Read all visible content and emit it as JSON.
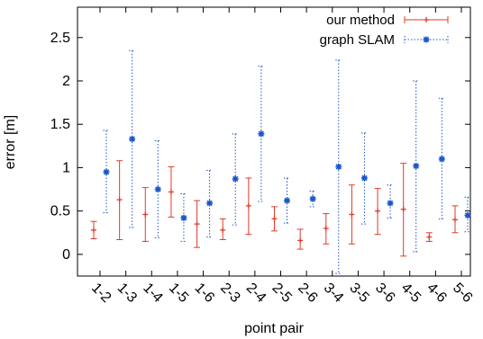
{
  "chart_data": {
    "type": "errorbar",
    "xlabel": "point pair",
    "ylabel": "error [m]",
    "categories": [
      "1-2",
      "1-3",
      "1-4",
      "1-5",
      "1-6",
      "2-3",
      "2-4",
      "2-5",
      "2-6",
      "3-4",
      "3-5",
      "3-6",
      "4-5",
      "4-6",
      "5-6"
    ],
    "ylim": [
      -0.25,
      2.85
    ],
    "yticks": [
      0,
      0.5,
      1,
      1.5,
      2,
      2.5
    ],
    "ytick_labels": [
      "0",
      "0.5",
      "1",
      "1.5",
      "2",
      "2.5"
    ],
    "legend_position": "top-right",
    "series": [
      {
        "name": "our method",
        "color": "#e03b2b",
        "line_style": "solid",
        "marker": "plus",
        "values": [
          0.28,
          0.63,
          0.46,
          0.72,
          0.35,
          0.28,
          0.56,
          0.41,
          0.16,
          0.3,
          0.46,
          0.5,
          0.52,
          0.2,
          0.4
        ],
        "low": [
          0.18,
          0.17,
          0.15,
          0.43,
          0.08,
          0.17,
          0.23,
          0.27,
          0.06,
          0.12,
          0.12,
          0.23,
          -0.02,
          0.15,
          0.25
        ],
        "high": [
          0.38,
          1.08,
          0.77,
          1.01,
          0.62,
          0.41,
          0.88,
          0.55,
          0.29,
          0.47,
          0.8,
          0.76,
          1.05,
          0.25,
          0.56
        ]
      },
      {
        "name": "graph SLAM",
        "color": "#1a56c8",
        "line_style": "dotted",
        "marker": "star",
        "values": [
          0.95,
          1.33,
          0.75,
          0.42,
          0.59,
          0.87,
          1.39,
          0.62,
          0.64,
          1.01,
          0.88,
          0.59,
          1.02,
          1.1,
          0.45
        ],
        "low": [
          0.48,
          0.31,
          0.19,
          0.15,
          0.2,
          0.34,
          0.61,
          0.36,
          0.55,
          -0.22,
          0.35,
          0.42,
          0.03,
          0.41,
          0.26
        ],
        "high": [
          1.43,
          2.35,
          1.31,
          0.7,
          0.97,
          1.39,
          2.17,
          0.88,
          0.73,
          2.24,
          1.4,
          0.8,
          2.0,
          1.8,
          0.66
        ]
      }
    ]
  }
}
